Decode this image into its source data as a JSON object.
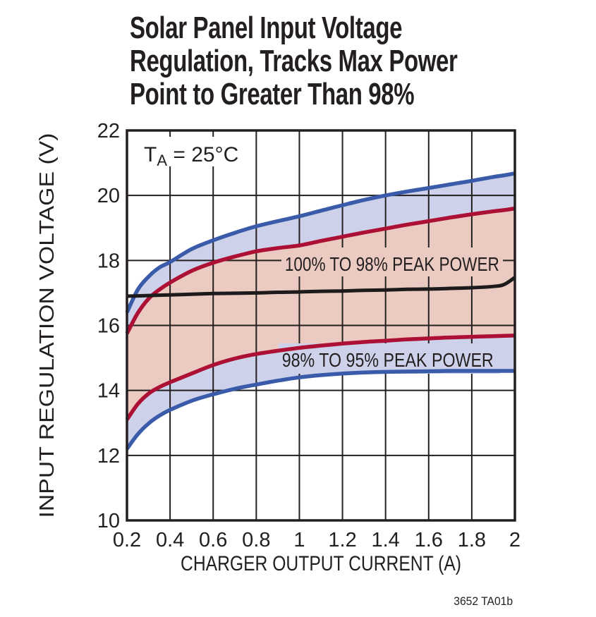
{
  "title": {
    "lines": [
      "Solar Panel Input Voltage",
      "Regulation, Tracks Max Power",
      "Point to Greater Than 98%"
    ]
  },
  "footnote": "3652 TA01b",
  "annotation": {
    "t_prefix": "T",
    "t_sub": "A",
    "t_rest": " = 25°C"
  },
  "colors": {
    "ink": "#231f20",
    "blue_curve": "#3a5ba9",
    "red_curve": "#ad1035",
    "black_curve": "#1d1a1b",
    "lavender_fill": "#cdd2ea",
    "pink_fill": "#eacac1",
    "white": "#ffffff"
  },
  "chart_data": {
    "type": "line",
    "title": "Solar Panel Input Voltage Regulation, Tracks Max Power Point to Greater Than 98%",
    "xlabel": "CHARGER OUTPUT CURRENT (A)",
    "ylabel": "INPUT REGULATION VOLTAGE (V)",
    "xlim": [
      0.2,
      2.0
    ],
    "ylim": [
      10,
      22
    ],
    "grid": {
      "x_step": 0.2,
      "y_step": 2,
      "shown": true
    },
    "legend_position": "none",
    "x_ticks": [
      0.2,
      0.4,
      0.6,
      0.8,
      1.0,
      1.2,
      1.4,
      1.6,
      1.8,
      2.0
    ],
    "x_tick_labels": [
      "0.2",
      "0.4",
      "0.6",
      "0.8",
      "1",
      "1.2",
      "1.4",
      "1.6",
      "1.8",
      "2"
    ],
    "y_ticks": [
      22,
      20,
      18,
      16,
      14,
      12,
      10
    ],
    "y_tick_labels": [
      "22",
      "20",
      "18",
      "16",
      "14",
      "12",
      "10"
    ],
    "x": [
      0.2,
      0.25,
      0.3,
      0.35,
      0.4,
      0.5,
      0.6,
      0.7,
      0.8,
      0.9,
      1.0,
      1.1,
      1.2,
      1.3,
      1.4,
      1.5,
      1.6,
      1.7,
      1.8,
      1.9,
      1.95,
      2.0
    ],
    "series": [
      {
        "name": "95% peak power boundary (upper)",
        "color_key": "blue_curve",
        "values": [
          16.4,
          17.1,
          17.5,
          17.78,
          17.95,
          18.35,
          18.62,
          18.85,
          19.05,
          19.21,
          19.36,
          19.53,
          19.7,
          19.86,
          20.0,
          20.12,
          20.23,
          20.34,
          20.45,
          20.57,
          20.62,
          20.68
        ]
      },
      {
        "name": "98% peak power boundary (upper)",
        "color_key": "red_curve",
        "values": [
          15.75,
          16.38,
          16.82,
          17.1,
          17.32,
          17.68,
          17.93,
          18.12,
          18.28,
          18.38,
          18.46,
          18.6,
          18.73,
          18.86,
          18.98,
          19.1,
          19.21,
          19.32,
          19.42,
          19.51,
          19.55,
          19.6
        ]
      },
      {
        "name": "98% peak power boundary (lower)",
        "color_key": "red_curve",
        "values": [
          13.1,
          13.58,
          13.9,
          14.1,
          14.25,
          14.52,
          14.78,
          14.98,
          15.12,
          15.22,
          15.31,
          15.38,
          15.44,
          15.49,
          15.53,
          15.57,
          15.6,
          15.63,
          15.65,
          15.67,
          15.68,
          15.69
        ]
      },
      {
        "name": "95% peak power boundary (lower)",
        "color_key": "blue_curve",
        "values": [
          12.2,
          12.65,
          12.98,
          13.22,
          13.4,
          13.68,
          13.88,
          14.05,
          14.18,
          14.3,
          14.4,
          14.47,
          14.52,
          14.55,
          14.57,
          14.58,
          14.59,
          14.6,
          14.6,
          14.6,
          14.6,
          14.6
        ]
      },
      {
        "name": "input regulation voltage (tracks max power point)",
        "color_key": "black_curve",
        "values": [
          16.9,
          16.91,
          16.92,
          16.93,
          16.94,
          16.96,
          16.98,
          16.99,
          17.0,
          17.02,
          17.03,
          17.05,
          17.06,
          17.08,
          17.09,
          17.11,
          17.12,
          17.14,
          17.16,
          17.2,
          17.26,
          17.48
        ]
      }
    ],
    "bands": [
      {
        "fill_key": "lavender_fill",
        "upper": 0,
        "lower": 1,
        "label": ""
      },
      {
        "fill_key": "pink_fill",
        "upper": 1,
        "lower": 2,
        "label": "100% TO 98% PEAK POWER"
      },
      {
        "fill_key": "lavender_fill",
        "upper": 2,
        "lower": 3,
        "label": "98% TO 95% PEAK POWER"
      }
    ],
    "region_labels": [
      {
        "text": "100% TO 98% PEAK POWER",
        "x": 1.43,
        "y": 17.9
      },
      {
        "text": "98% TO 95% PEAK POWER",
        "x": 1.41,
        "y": 14.95
      }
    ],
    "annotations": [
      "TA = 25°C"
    ]
  }
}
